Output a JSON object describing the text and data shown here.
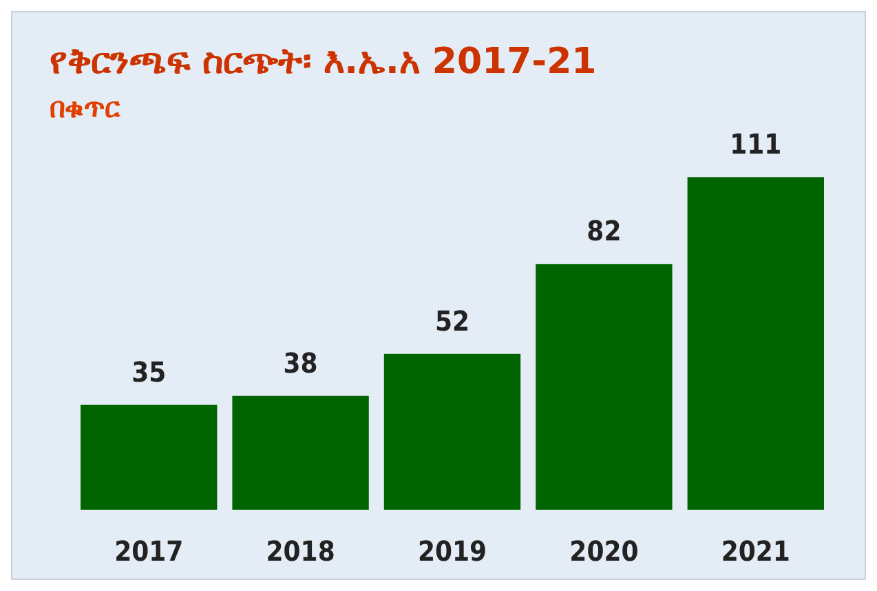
{
  "chart_data": {
    "type": "bar",
    "title": "የቅርንጫፍ ስርጭት፡ እ.ኤ.አ 2017-21",
    "subtitle": "በቁጥር",
    "categories": [
      "2017",
      "2018",
      "2019",
      "2020",
      "2021"
    ],
    "values": [
      35,
      38,
      52,
      82,
      111
    ],
    "color": "#006400",
    "data_labels": true
  }
}
